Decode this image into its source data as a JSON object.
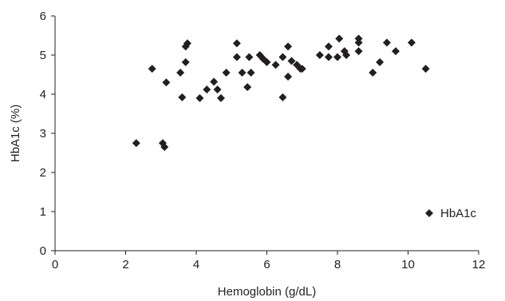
{
  "chart_data": {
    "type": "scatter",
    "title": "",
    "xlabel": "Hemoglobin (g/dL)",
    "ylabel": "HbA1c (%)",
    "xlim": [
      0,
      12
    ],
    "ylim": [
      0,
      6
    ],
    "xticks": [
      "0",
      "2",
      "4",
      "6",
      "8",
      "10",
      "12"
    ],
    "yticks": [
      "0",
      "1",
      "2",
      "3",
      "4",
      "5",
      "6"
    ],
    "grid": false,
    "legend_position": "lower-right",
    "marker_color": "#231f20",
    "series": [
      {
        "name": "HbA1c",
        "marker": "diamond",
        "points": [
          [
            2.3,
            2.75
          ],
          [
            2.75,
            4.65
          ],
          [
            3.05,
            2.75
          ],
          [
            3.1,
            2.65
          ],
          [
            3.15,
            4.3
          ],
          [
            3.55,
            4.55
          ],
          [
            3.6,
            3.92
          ],
          [
            3.7,
            5.22
          ],
          [
            3.7,
            4.82
          ],
          [
            3.75,
            5.3
          ],
          [
            4.1,
            3.9
          ],
          [
            4.3,
            4.12
          ],
          [
            4.5,
            4.32
          ],
          [
            4.6,
            4.12
          ],
          [
            4.7,
            3.9
          ],
          [
            4.85,
            4.55
          ],
          [
            5.15,
            5.3
          ],
          [
            5.15,
            4.95
          ],
          [
            5.3,
            4.55
          ],
          [
            5.45,
            4.18
          ],
          [
            5.5,
            4.95
          ],
          [
            5.55,
            4.55
          ],
          [
            5.8,
            5.0
          ],
          [
            5.9,
            4.9
          ],
          [
            6.0,
            4.82
          ],
          [
            6.25,
            4.75
          ],
          [
            6.45,
            4.95
          ],
          [
            6.45,
            3.92
          ],
          [
            6.6,
            5.22
          ],
          [
            6.6,
            4.45
          ],
          [
            6.7,
            4.85
          ],
          [
            6.85,
            4.75
          ],
          [
            6.95,
            4.65
          ],
          [
            7.0,
            4.65
          ],
          [
            7.5,
            5.0
          ],
          [
            7.75,
            5.22
          ],
          [
            7.75,
            4.95
          ],
          [
            8.0,
            4.95
          ],
          [
            8.05,
            5.42
          ],
          [
            8.2,
            5.1
          ],
          [
            8.25,
            5.0
          ],
          [
            8.6,
            5.42
          ],
          [
            8.6,
            5.32
          ],
          [
            8.6,
            5.1
          ],
          [
            9.0,
            4.55
          ],
          [
            9.2,
            4.82
          ],
          [
            9.4,
            5.32
          ],
          [
            9.65,
            5.1
          ],
          [
            10.1,
            5.32
          ],
          [
            10.5,
            4.65
          ]
        ]
      }
    ]
  }
}
